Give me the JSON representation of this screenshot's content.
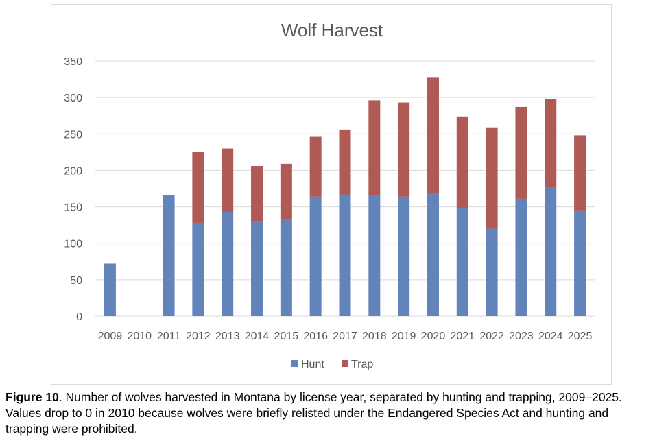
{
  "chart_data": {
    "type": "bar",
    "stacked": true,
    "title": "Wolf Harvest",
    "xlabel": "",
    "ylabel": "",
    "ylim": [
      0,
      350
    ],
    "yticks": [
      0,
      50,
      100,
      150,
      200,
      250,
      300,
      350
    ],
    "grid": true,
    "legend": "bottom",
    "categories": [
      "2009",
      "2010",
      "2011",
      "2012",
      "2013",
      "2014",
      "2015",
      "2016",
      "2017",
      "2018",
      "2019",
      "2020",
      "2021",
      "2022",
      "2023",
      "2024",
      "2025"
    ],
    "series": [
      {
        "name": "Hunt",
        "color": "#6384BA",
        "values": [
          72,
          0,
          166,
          128,
          143,
          130,
          133,
          164,
          167,
          166,
          164,
          169,
          148,
          120,
          161,
          177,
          145
        ]
      },
      {
        "name": "Trap",
        "color": "#B05A55",
        "values": [
          0,
          0,
          0,
          97,
          87,
          76,
          76,
          82,
          89,
          130,
          129,
          159,
          126,
          139,
          126,
          121,
          103
        ]
      }
    ]
  },
  "caption": {
    "label": "Figure 10",
    "text": ". Number of wolves harvested in Montana by license year, separated by hunting and trapping, 2009–2025. Values drop to 0 in 2010 because wolves were briefly relisted under the Endangered Species Act and hunting and trapping were prohibited."
  }
}
